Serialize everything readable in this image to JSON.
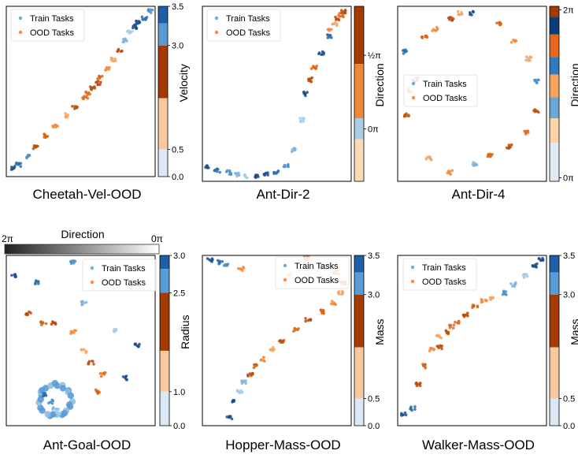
{
  "figure": {
    "top_bar": {
      "title": "Direction",
      "left_label": "2π",
      "right_label": "0π",
      "colors": [
        "#222222",
        "#ffffff"
      ]
    }
  },
  "legend": {
    "train": "Train Tasks",
    "ood": "OOD Tasks",
    "train_color": "#6baed6",
    "ood_color": "#fd8d3c"
  },
  "chart_data": [
    {
      "type": "scatter",
      "title": "Cheetah-Vel-OOD",
      "colorbar": {
        "label": "Velocity",
        "ticks": [
          "0.0",
          "0.5",
          "3.0",
          "3.5"
        ],
        "tick_values": [
          0.0,
          0.5,
          3.0,
          3.5
        ]
      },
      "series": [
        {
          "name": "Train Tasks",
          "points": [
            [
              0.05,
              0.05
            ],
            [
              0.08,
              0.07
            ],
            [
              0.15,
              0.12
            ],
            [
              0.8,
              0.8
            ],
            [
              0.83,
              0.85
            ],
            [
              0.86,
              0.88
            ],
            [
              0.89,
              0.91
            ],
            [
              0.93,
              0.93
            ],
            [
              0.97,
              0.97
            ]
          ]
        },
        {
          "name": "OOD Tasks",
          "points": [
            [
              0.2,
              0.17
            ],
            [
              0.27,
              0.24
            ],
            [
              0.33,
              0.3
            ],
            [
              0.4,
              0.36
            ],
            [
              0.46,
              0.41
            ],
            [
              0.53,
              0.46
            ],
            [
              0.58,
              0.52
            ],
            [
              0.63,
              0.58
            ],
            [
              0.68,
              0.63
            ],
            [
              0.72,
              0.69
            ],
            [
              0.76,
              0.74
            ],
            [
              0.55,
              0.49
            ],
            [
              0.62,
              0.55
            ]
          ]
        }
      ]
    },
    {
      "type": "scatter",
      "title": "Ant-Dir-2",
      "colorbar": {
        "label": "Direction",
        "ticks": [
          "0π",
          "½π"
        ],
        "tick_values": [
          0.0,
          0.5
        ]
      },
      "series": [
        {
          "name": "Train Tasks",
          "points": [
            [
              0.03,
              0.08
            ],
            [
              0.1,
              0.06
            ],
            [
              0.18,
              0.05
            ],
            [
              0.24,
              0.04
            ],
            [
              0.3,
              0.03
            ],
            [
              0.36,
              0.03
            ],
            [
              0.43,
              0.04
            ],
            [
              0.5,
              0.05
            ],
            [
              0.56,
              0.09
            ],
            [
              0.62,
              0.18
            ],
            [
              0.67,
              0.35
            ],
            [
              0.7,
              0.5
            ],
            [
              0.8,
              0.73
            ],
            [
              0.85,
              0.83
            ]
          ]
        },
        {
          "name": "OOD Tasks",
          "points": [
            [
              0.72,
              0.58
            ],
            [
              0.75,
              0.65
            ],
            [
              0.86,
              0.86
            ],
            [
              0.89,
              0.9
            ],
            [
              0.91,
              0.93
            ],
            [
              0.93,
              0.95
            ],
            [
              0.95,
              0.97
            ]
          ]
        }
      ]
    },
    {
      "type": "scatter",
      "title": "Ant-Dir-4",
      "colorbar": {
        "label": "Direction",
        "ticks": [
          "0π",
          "2π"
        ],
        "tick_values": [
          0.0,
          2.0
        ]
      },
      "series": [
        {
          "name": "Train Tasks",
          "points": [
            [
              0.5,
              0.96
            ],
            [
              0.05,
              0.74
            ],
            [
              0.93,
              0.57
            ],
            [
              0.52,
              0.1
            ]
          ]
        },
        {
          "name": "OOD Tasks",
          "points": [
            [
              0.36,
              0.93
            ],
            [
              0.68,
              0.9
            ],
            [
              0.78,
              0.8
            ],
            [
              0.88,
              0.7
            ],
            [
              0.93,
              0.4
            ],
            [
              0.87,
              0.28
            ],
            [
              0.75,
              0.2
            ],
            [
              0.62,
              0.15
            ],
            [
              0.35,
              0.05
            ],
            [
              0.21,
              0.13
            ],
            [
              0.06,
              0.38
            ],
            [
              0.08,
              0.52
            ],
            [
              0.12,
              0.58
            ],
            [
              0.18,
              0.82
            ],
            [
              0.25,
              0.87
            ],
            [
              0.42,
              0.96
            ]
          ]
        }
      ]
    },
    {
      "type": "scatter",
      "title": "Ant-Goal-OOD",
      "colorbar": {
        "label": "Radius",
        "ticks": [
          "0.0",
          "1.0",
          "2.5",
          "3.0"
        ],
        "tick_values": [
          0.0,
          1.0,
          2.5,
          3.0
        ]
      },
      "series": [
        {
          "name": "Train Tasks",
          "points": [
            [
              0.05,
              0.88
            ],
            [
              0.2,
              0.84
            ],
            [
              0.45,
              0.96
            ],
            [
              0.52,
              0.72
            ],
            [
              0.72,
              0.56
            ],
            [
              0.88,
              0.47
            ],
            [
              0.8,
              0.28
            ],
            [
              0.25,
              0.18
            ],
            [
              0.3,
              0.14
            ],
            [
              0.33,
              0.1
            ],
            [
              0.35,
              0.08
            ]
          ]
        },
        {
          "name": "OOD Tasks",
          "points": [
            [
              0.15,
              0.66
            ],
            [
              0.25,
              0.6
            ],
            [
              0.45,
              0.55
            ],
            [
              0.52,
              0.44
            ],
            [
              0.57,
              0.37
            ],
            [
              0.65,
              0.3
            ],
            [
              0.32,
              0.6
            ],
            [
              0.62,
              0.2
            ]
          ]
        }
      ]
    },
    {
      "type": "scatter",
      "title": "Hopper-Mass-OOD",
      "colorbar": {
        "label": "Mass",
        "ticks": [
          "0.0",
          "0.5",
          "3.0",
          "3.5"
        ],
        "tick_values": [
          0.0,
          0.5,
          3.0,
          3.5
        ]
      },
      "series": [
        {
          "name": "Train Tasks",
          "points": [
            [
              0.05,
              0.97
            ],
            [
              0.12,
              0.96
            ],
            [
              0.16,
              0.94
            ],
            [
              0.28,
              0.26
            ],
            [
              0.25,
              0.2
            ],
            [
              0.21,
              0.14
            ],
            [
              0.18,
              0.05
            ]
          ]
        },
        {
          "name": "OOD Tasks",
          "points": [
            [
              0.32,
              0.3
            ],
            [
              0.36,
              0.35
            ],
            [
              0.41,
              0.39
            ],
            [
              0.47,
              0.45
            ],
            [
              0.53,
              0.49
            ],
            [
              0.63,
              0.56
            ],
            [
              0.71,
              0.62
            ],
            [
              0.8,
              0.67
            ],
            [
              0.88,
              0.72
            ],
            [
              0.93,
              0.78
            ],
            [
              0.95,
              0.84
            ],
            [
              0.9,
              0.9
            ],
            [
              0.8,
              0.93
            ],
            [
              0.7,
              0.98
            ],
            [
              0.26,
              0.92
            ],
            [
              0.58,
              0.89
            ]
          ]
        }
      ]
    },
    {
      "type": "scatter",
      "title": "Walker-Mass-OOD",
      "colorbar": {
        "label": "Mass",
        "ticks": [
          "0.0",
          "0.5",
          "3.0",
          "3.5"
        ],
        "tick_values": [
          0.0,
          0.5,
          3.0,
          3.5
        ]
      },
      "series": [
        {
          "name": "Train Tasks",
          "points": [
            [
              0.04,
              0.07
            ],
            [
              0.1,
              0.1
            ],
            [
              0.72,
              0.78
            ],
            [
              0.78,
              0.83
            ],
            [
              0.86,
              0.88
            ],
            [
              0.92,
              0.94
            ],
            [
              0.96,
              0.98
            ]
          ]
        },
        {
          "name": "OOD Tasks",
          "points": [
            [
              0.14,
              0.24
            ],
            [
              0.18,
              0.35
            ],
            [
              0.23,
              0.45
            ],
            [
              0.28,
              0.52
            ],
            [
              0.34,
              0.55
            ],
            [
              0.4,
              0.61
            ],
            [
              0.46,
              0.65
            ],
            [
              0.52,
              0.7
            ],
            [
              0.58,
              0.73
            ],
            [
              0.64,
              0.75
            ],
            [
              0.28,
              0.46
            ],
            [
              0.36,
              0.58
            ]
          ]
        }
      ]
    }
  ]
}
